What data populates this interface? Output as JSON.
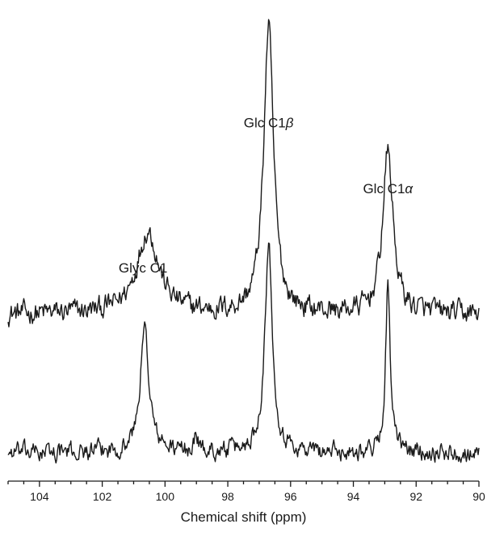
{
  "chart_data": {
    "type": "line",
    "title": "",
    "xlabel": "Chemical shift (ppm)",
    "ylabel": "",
    "xlim": [
      105,
      90
    ],
    "x_reversed": true,
    "y_axis_shown": false,
    "x_ticks": [
      104,
      102,
      100,
      98,
      96,
      94,
      92,
      90
    ],
    "x_tick_labels": [
      "104",
      "102",
      "100",
      "98",
      "96",
      "94",
      "92",
      "90"
    ],
    "minor_tick_step": 0.5,
    "ylim": [
      -0.2,
      10.6
    ],
    "grid": false,
    "legend": "none",
    "line_color": "#1a1a1a",
    "annotations": [
      {
        "text": "Glyc C1",
        "x": 100.7,
        "y": 4.55
      },
      {
        "text": "Glc C1",
        "symbol": "β",
        "x": 96.7,
        "y": 7.85
      },
      {
        "text": "Glc C1",
        "symbol": "α",
        "x": 92.9,
        "y": 6.35
      }
    ],
    "series": [
      {
        "offset": 3.6,
        "noise_amplitude": 0.32,
        "peaks": [
          {
            "x": 100.55,
            "height": 1.9,
            "width": 0.42
          },
          {
            "x": 96.7,
            "height": 6.5,
            "width": 0.19
          },
          {
            "x": 92.9,
            "height": 3.7,
            "width": 0.2
          }
        ]
      },
      {
        "offset": 0.45,
        "noise_amplitude": 0.26,
        "peaks": [
          {
            "x": 100.65,
            "height": 2.8,
            "width": 0.17
          },
          {
            "x": 99.0,
            "height": 0.4,
            "width": 0.07
          },
          {
            "x": 96.7,
            "height": 4.7,
            "width": 0.15
          },
          {
            "x": 92.9,
            "height": 3.8,
            "width": 0.09
          }
        ]
      }
    ]
  }
}
